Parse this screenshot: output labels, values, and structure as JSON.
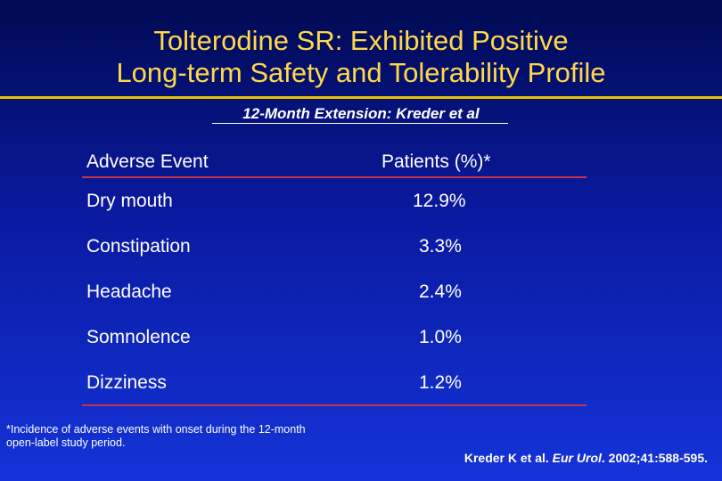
{
  "title": {
    "line1": "Tolterodine SR: Exhibited Positive",
    "line2": "Long-term Safety and Tolerability Profile"
  },
  "subtitle": "12-Month Extension: Kreder et al",
  "table": {
    "headers": [
      "Adverse Event",
      "Patients (%)*"
    ],
    "rows": [
      {
        "event": "Dry mouth",
        "percent": "12.9%"
      },
      {
        "event": "Constipation",
        "percent": "3.3%"
      },
      {
        "event": "Headache",
        "percent": "2.4%"
      },
      {
        "event": "Somnolence",
        "percent": "1.0%"
      },
      {
        "event": "Dizziness",
        "percent": "1.2%"
      }
    ]
  },
  "footnote": "*Incidence of adverse events with onset during the 12-month open-label study period.",
  "citation": {
    "authors": "Kreder K et al.",
    "journal": "Eur Urol",
    "details": ". 2002;41:588-595."
  }
}
